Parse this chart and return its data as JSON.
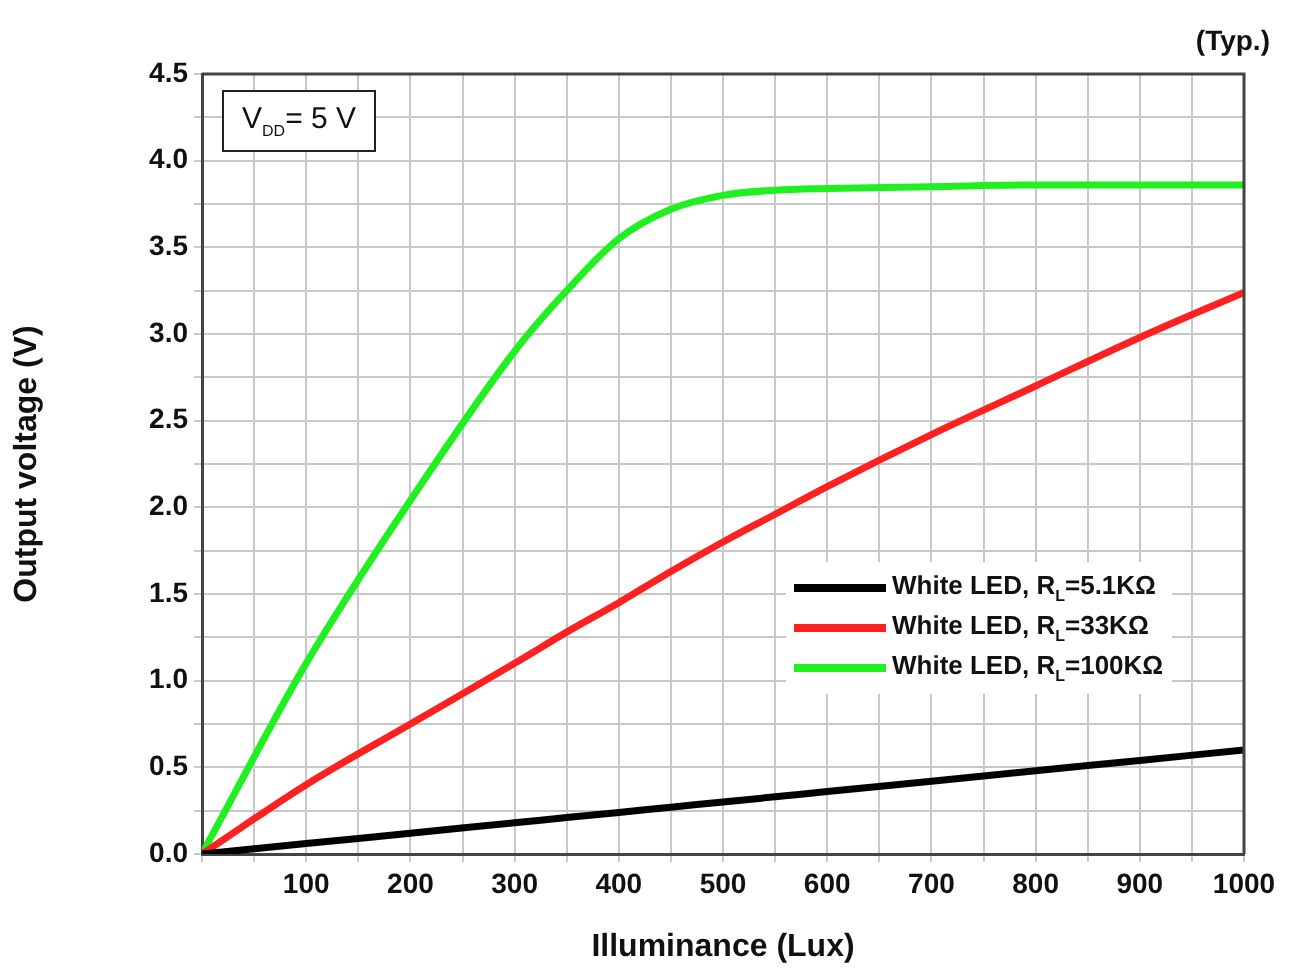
{
  "chart_data": {
    "type": "line",
    "xlabel": "Illuminance (Lux)",
    "ylabel": "Output voltage (V)",
    "annotations": [
      "(Typ.)",
      "V$_{DD}$= 5 V"
    ],
    "x": [
      0,
      100,
      200,
      300,
      350,
      400,
      450,
      500,
      550,
      600,
      700,
      800,
      900,
      1000
    ],
    "series": [
      {
        "name": "White LED, R$_{L}$=5.1KΩ",
        "color": "#000000",
        "values": [
          0,
          0.06,
          0.12,
          0.18,
          0.21,
          0.24,
          0.27,
          0.3,
          0.33,
          0.36,
          0.42,
          0.48,
          0.54,
          0.6
        ]
      },
      {
        "name": "White LED, R$_{L}$=33KΩ",
        "color": "#ff2020",
        "values": [
          0,
          0.4,
          0.75,
          1.1,
          1.28,
          1.45,
          1.63,
          1.8,
          1.96,
          2.12,
          2.42,
          2.7,
          2.98,
          3.24
        ]
      },
      {
        "name": "White LED, R$_{L}$=100KΩ",
        "color": "#20f020",
        "values": [
          0,
          1.1,
          2.04,
          2.9,
          3.25,
          3.55,
          3.72,
          3.8,
          3.83,
          3.84,
          3.85,
          3.86,
          3.86,
          3.86
        ]
      }
    ],
    "xlim": [
      0,
      1000
    ],
    "xticks": [
      {
        "value": 0,
        "label": null
      },
      {
        "value": 50,
        "label": null
      },
      100,
      {
        "value": 150,
        "label": null
      },
      200,
      {
        "value": 250,
        "label": null
      },
      300,
      {
        "value": 350,
        "label": null
      },
      400,
      {
        "value": 450,
        "label": null
      },
      500,
      {
        "value": 550,
        "label": null
      },
      600,
      {
        "value": 650,
        "label": null
      },
      700,
      {
        "value": 750,
        "label": null
      },
      800,
      {
        "value": 850,
        "label": null
      },
      900,
      {
        "value": 950,
        "label": null
      },
      1000
    ],
    "ylim": [
      0,
      4.5
    ],
    "yticks": [
      {
        "value": 0,
        "label": "0.0"
      },
      {
        "value": 0.25,
        "label": null
      },
      {
        "value": 0.5,
        "label": "0.5"
      },
      {
        "value": 0.75,
        "label": null
      },
      {
        "value": 1,
        "label": "1.0"
      },
      {
        "value": 1.25,
        "label": null
      },
      {
        "value": 1.5,
        "label": "1.5"
      },
      {
        "value": 1.75,
        "label": null
      },
      {
        "value": 2,
        "label": "2.0"
      },
      {
        "value": 2.25,
        "label": null
      },
      {
        "value": 2.5,
        "label": "2.5"
      },
      {
        "value": 2.75,
        "label": null
      },
      {
        "value": 3,
        "label": "3.0"
      },
      {
        "value": 3.25,
        "label": null
      },
      {
        "value": 3.5,
        "label": "3.5"
      },
      {
        "value": 3.75,
        "label": null
      },
      {
        "value": 4,
        "label": "4.0"
      },
      {
        "value": 4.25,
        "label": null
      },
      {
        "value": 4.5,
        "label": "4.5"
      }
    ],
    "grid": true,
    "legend": "bottom right",
    "marker": "none",
    "line_style": "solid"
  }
}
